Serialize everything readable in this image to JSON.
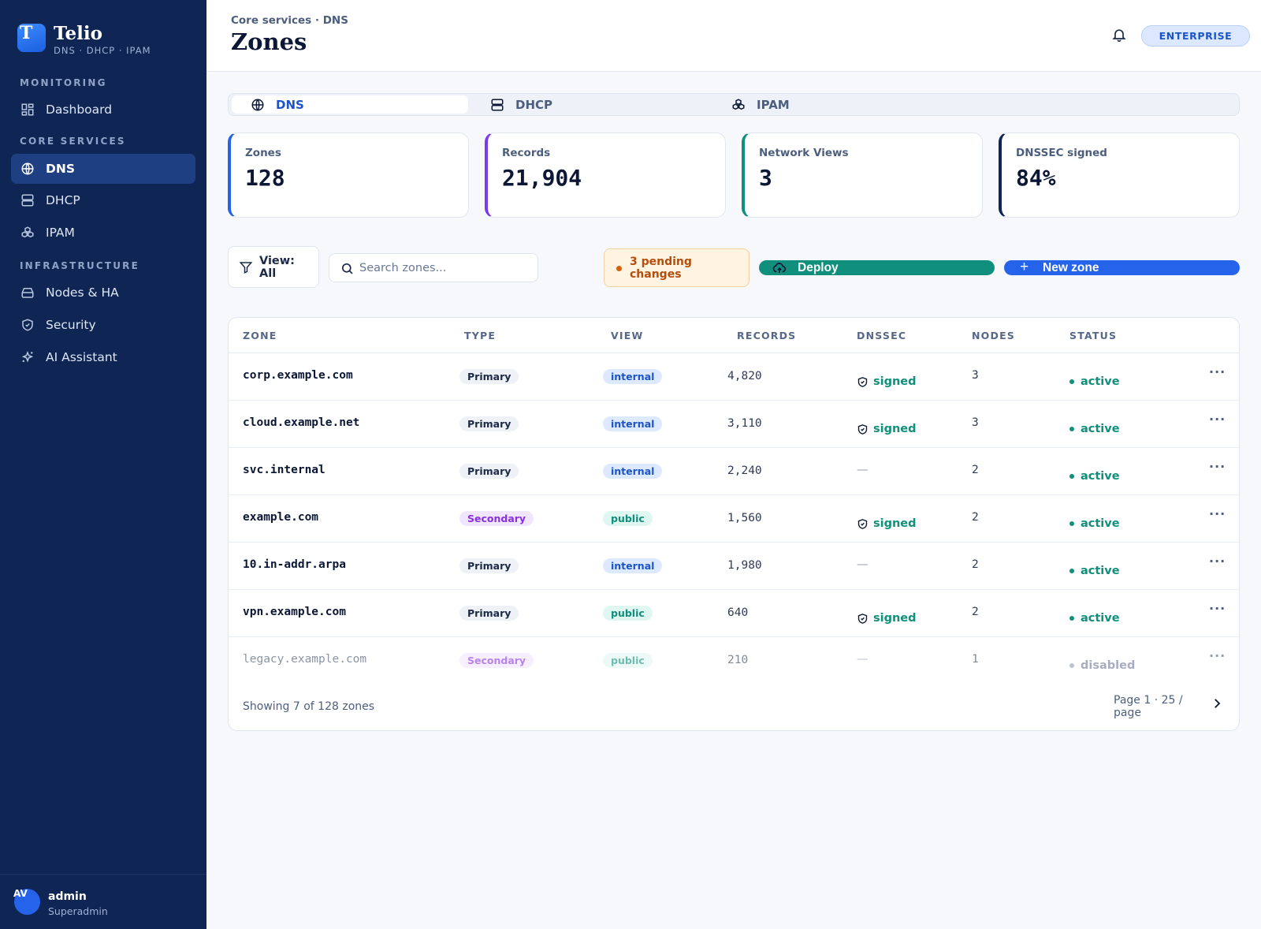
{
  "brand": {
    "logo_letter": "T",
    "name": "Telio",
    "subtitle": "DNS · DHCP · IPAM"
  },
  "sidebar": {
    "sections": [
      {
        "label": "MONITORING",
        "items": [
          {
            "label": "Dashboard",
            "icon": "grid-icon"
          }
        ]
      },
      {
        "label": "CORE SERVICES",
        "items": [
          {
            "label": "DNS",
            "icon": "globe-icon",
            "active": true
          },
          {
            "label": "DHCP",
            "icon": "server-icon"
          },
          {
            "label": "IPAM",
            "icon": "cubes-icon"
          }
        ]
      },
      {
        "label": "INFRASTRUCTURE",
        "items": [
          {
            "label": "Nodes & HA",
            "icon": "drive-icon"
          },
          {
            "label": "Security",
            "icon": "shield-icon"
          },
          {
            "label": "AI Assistant",
            "icon": "sparkle-icon"
          }
        ]
      }
    ],
    "user": {
      "initials": "AV",
      "name": "admin",
      "role": "Superadmin"
    }
  },
  "header": {
    "breadcrumb": "Core services · DNS",
    "title": "Zones",
    "plan": "ENTERPRISE"
  },
  "tabs": [
    {
      "label": "DNS",
      "icon": "globe-icon",
      "active": true
    },
    {
      "label": "DHCP",
      "icon": "server-icon"
    },
    {
      "label": "IPAM",
      "icon": "cubes-icon"
    }
  ],
  "stats": [
    {
      "label": "Zones",
      "value": "128",
      "accent": "#2563eb"
    },
    {
      "label": "Records",
      "value": "21,904",
      "accent": "#7c3aed"
    },
    {
      "label": "Network Views",
      "value": "3",
      "accent": "#0f8f7c"
    },
    {
      "label": "DNSSEC signed",
      "value": "84%",
      "accent": "#0f2654"
    }
  ],
  "toolbar": {
    "view_label": "View: All",
    "search_placeholder": "Search zones...",
    "pending_label": "3 pending changes",
    "deploy_label": "Deploy",
    "new_zone_label": "New zone"
  },
  "table": {
    "columns": [
      "ZONE",
      "TYPE",
      "VIEW",
      "RECORDS",
      "DNSSEC",
      "NODES",
      "STATUS"
    ],
    "rows": [
      {
        "zone": "corp.example.com",
        "type": "Primary",
        "view": "internal",
        "records": "4,820",
        "dnssec": "signed",
        "nodes": "3",
        "status": "active"
      },
      {
        "zone": "cloud.example.net",
        "type": "Primary",
        "view": "internal",
        "records": "3,110",
        "dnssec": "signed",
        "nodes": "3",
        "status": "active"
      },
      {
        "zone": "svc.internal",
        "type": "Primary",
        "view": "internal",
        "records": "2,240",
        "dnssec": "—",
        "nodes": "2",
        "status": "active"
      },
      {
        "zone": "example.com",
        "type": "Secondary",
        "view": "public",
        "records": "1,560",
        "dnssec": "signed",
        "nodes": "2",
        "status": "active"
      },
      {
        "zone": "10.in-addr.arpa",
        "type": "Primary",
        "view": "internal",
        "records": "1,980",
        "dnssec": "—",
        "nodes": "2",
        "status": "active"
      },
      {
        "zone": "vpn.example.com",
        "type": "Primary",
        "view": "public",
        "records": "640",
        "dnssec": "signed",
        "nodes": "2",
        "status": "active"
      },
      {
        "zone": "legacy.example.com",
        "type": "Secondary",
        "view": "public",
        "records": "210",
        "dnssec": "—",
        "nodes": "1",
        "status": "disabled"
      }
    ],
    "row_menu": "···",
    "footer_count": "Showing 7 of 128 zones",
    "footer_page": "Page 1 · 25 / page"
  },
  "colors": {
    "sidebar_bg": "#0f2654",
    "primary": "#2563eb",
    "success": "#0f8f7c",
    "warning": "#b34e0d"
  }
}
